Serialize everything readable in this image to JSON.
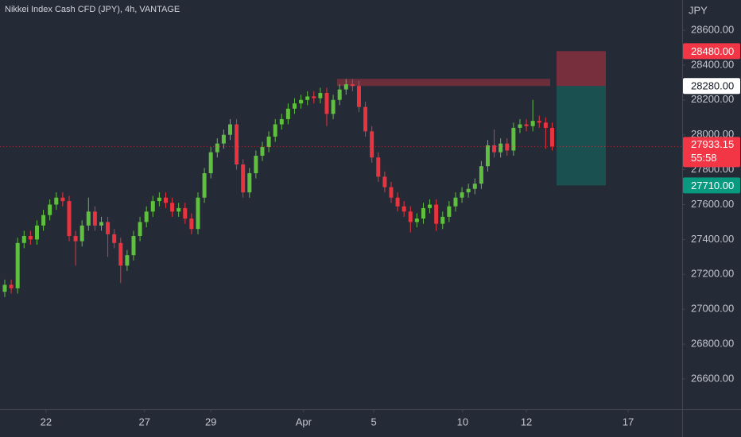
{
  "chart_data": {
    "type": "candlestick",
    "title": "Nikkei Index Cash CFD (JPY), 4h, VANTAGE",
    "currency": "JPY",
    "up_color": "#5fbf3e",
    "down_color": "#e8343f",
    "xlim": [
      -0.74,
      105.19
    ],
    "xticks": [
      {
        "value": 6.4,
        "label": "22"
      },
      {
        "value": 21.7,
        "label": "27"
      },
      {
        "value": 32.0,
        "label": "29"
      },
      {
        "value": 46.4,
        "label": "Apr"
      },
      {
        "value": 57.3,
        "label": "5"
      },
      {
        "value": 71.1,
        "label": "10"
      },
      {
        "value": 81.0,
        "label": "12"
      },
      {
        "value": 96.8,
        "label": "17"
      }
    ],
    "ylim": [
      26427,
      28773
    ],
    "yticks": [
      {
        "value": 26600,
        "label": "26600.00"
      },
      {
        "value": 26800,
        "label": "26800.00"
      },
      {
        "value": 27000,
        "label": "27000.00"
      },
      {
        "value": 27200,
        "label": "27200.00"
      },
      {
        "value": 27400,
        "label": "27400.00"
      },
      {
        "value": 27600,
        "label": "27600.00"
      },
      {
        "value": 27800,
        "label": "27800.00"
      },
      {
        "value": 28000,
        "label": "28000.00"
      },
      {
        "value": 28200,
        "label": "28200.00"
      },
      {
        "value": 28400,
        "label": "28400.00"
      },
      {
        "value": 28600,
        "label": "28600.00"
      }
    ],
    "open": [
      27100,
      27140,
      27120,
      27380,
      27420,
      27400,
      27480,
      27540,
      27600,
      27640,
      27620,
      27420,
      27390,
      27480,
      27560,
      27480,
      27500,
      27430,
      27380,
      27250,
      27310,
      27420,
      27500,
      27560,
      27620,
      27640,
      27610,
      27560,
      27580,
      27520,
      27460,
      27640,
      27780,
      27900,
      27950,
      28000,
      28060,
      27830,
      27670,
      27780,
      27880,
      27930,
      27990,
      28060,
      28090,
      28150,
      28180,
      28200,
      28220,
      28210,
      28240,
      28120,
      28200,
      28260,
      28290,
      28280,
      28160,
      28020,
      27870,
      27760,
      27700,
      27640,
      27590,
      27560,
      27500,
      27520,
      27580,
      27600,
      27490,
      27530,
      27590,
      27640,
      27670,
      27690,
      27720,
      27820,
      27940,
      27900,
      27950,
      27910,
      28040,
      28060,
      28050,
      28080,
      28070,
      28040
    ],
    "high": [
      27170,
      27170,
      27410,
      27450,
      27450,
      27510,
      27570,
      27630,
      27670,
      27670,
      27650,
      27450,
      27510,
      27640,
      27590,
      27530,
      27530,
      27460,
      27410,
      27340,
      27450,
      27530,
      27590,
      27650,
      27670,
      27670,
      27640,
      27610,
      27610,
      27550,
      27670,
      27810,
      27930,
      27980,
      28030,
      28090,
      28090,
      27860,
      27810,
      27910,
      27960,
      28020,
      28090,
      28120,
      28180,
      28210,
      28230,
      28250,
      28250,
      28270,
      28270,
      28230,
      28290,
      28320,
      28320,
      28310,
      28190,
      28050,
      27900,
      27790,
      27730,
      27670,
      27620,
      27590,
      27550,
      27610,
      27630,
      27630,
      27560,
      27620,
      27670,
      27700,
      27720,
      27750,
      27850,
      27970,
      28030,
      27980,
      27980,
      28070,
      28090,
      28090,
      28200,
      28110,
      28100,
      28070
    ],
    "low": [
      27070,
      27090,
      27090,
      27350,
      27370,
      27370,
      27450,
      27510,
      27570,
      27590,
      27390,
      27250,
      27360,
      27450,
      27450,
      27450,
      27300,
      27350,
      27150,
      27220,
      27280,
      27390,
      27470,
      27530,
      27590,
      27580,
      27530,
      27530,
      27490,
      27430,
      27430,
      27610,
      27750,
      27870,
      27920,
      27970,
      27800,
      27640,
      27640,
      27750,
      27850,
      27900,
      27960,
      28030,
      28060,
      28120,
      28150,
      28170,
      28180,
      28180,
      28050,
      28090,
      28170,
      28230,
      28250,
      28130,
      27990,
      27840,
      27730,
      27670,
      27610,
      27560,
      27530,
      27440,
      27470,
      27490,
      27550,
      27450,
      27460,
      27500,
      27560,
      27610,
      27640,
      27660,
      27690,
      27790,
      27870,
      27870,
      27880,
      27880,
      28010,
      28020,
      28020,
      28040,
      27920,
      27910
    ],
    "close": [
      27140,
      27120,
      27380,
      27420,
      27400,
      27480,
      27540,
      27600,
      27640,
      27620,
      27420,
      27390,
      27480,
      27560,
      27480,
      27500,
      27430,
      27380,
      27250,
      27310,
      27420,
      27500,
      27560,
      27620,
      27640,
      27610,
      27560,
      27580,
      27520,
      27460,
      27640,
      27780,
      27900,
      27950,
      28000,
      28060,
      27830,
      27670,
      27780,
      27880,
      27930,
      27990,
      28060,
      28090,
      28150,
      28180,
      28200,
      28220,
      28210,
      28240,
      28120,
      28200,
      28260,
      28290,
      28280,
      28160,
      28020,
      27870,
      27760,
      27700,
      27640,
      27590,
      27560,
      27500,
      27520,
      27580,
      27600,
      27490,
      27530,
      27590,
      27640,
      27670,
      27690,
      27720,
      27820,
      27940,
      27900,
      27950,
      27910,
      28040,
      28060,
      28050,
      28080,
      28070,
      28040,
      27933.15
    ],
    "position": {
      "stop": {
        "value": 28480,
        "label": "28480.00",
        "color": "#f23645"
      },
      "entry": {
        "value": 28280,
        "label": "28280.00",
        "color": "#ffffff"
      },
      "target": {
        "value": 27710,
        "label": "27710.00",
        "color": "#089981"
      }
    },
    "last_price": {
      "value": 27933.15,
      "countdown": "55:58",
      "color": "#f23645"
    }
  }
}
